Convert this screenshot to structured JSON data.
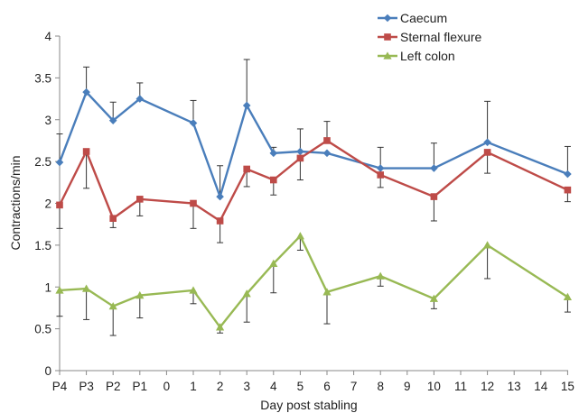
{
  "chart_data": {
    "type": "line",
    "xlabel": "Day post stabling",
    "ylabel": "Contractions/min",
    "ylim": [
      0,
      4
    ],
    "yticks": [
      "0",
      "0.5",
      "1",
      "1.5",
      "2",
      "2.5",
      "3",
      "3.5",
      "4"
    ],
    "categories": [
      "P4",
      "P3",
      "P2",
      "P1",
      "0",
      "1",
      "2",
      "3",
      "4",
      "5",
      "6",
      "7",
      "8",
      "9",
      "10",
      "11",
      "12",
      "13",
      "14",
      "15"
    ],
    "grid": false,
    "legend_position": "top-right",
    "series": [
      {
        "name": "Caecum",
        "color": "#4a7ebb",
        "marker": "diamond",
        "values": [
          2.49,
          3.33,
          2.99,
          3.25,
          null,
          2.96,
          2.08,
          3.17,
          2.6,
          2.62,
          2.6,
          null,
          2.42,
          null,
          2.42,
          null,
          2.73,
          null,
          null,
          2.35
        ],
        "error_upper": [
          0.34,
          0.3,
          0.22,
          0.19,
          null,
          0.27,
          0.37,
          0.55,
          0.07,
          0.27,
          null,
          null,
          null,
          null,
          0.3,
          null,
          0.49,
          null,
          null,
          0.33
        ],
        "error_lower": [
          null,
          null,
          null,
          null,
          null,
          null,
          null,
          null,
          null,
          null,
          null,
          null,
          null,
          null,
          null,
          null,
          null,
          null,
          null,
          null
        ]
      },
      {
        "name": "Sternal flexure",
        "color": "#be4b48",
        "marker": "square",
        "values": [
          1.98,
          2.62,
          1.82,
          2.05,
          null,
          2.0,
          1.79,
          2.41,
          2.28,
          2.54,
          2.75,
          null,
          2.34,
          null,
          2.08,
          null,
          2.61,
          null,
          null,
          2.16
        ],
        "error_upper": [
          null,
          null,
          null,
          null,
          null,
          null,
          null,
          null,
          null,
          null,
          0.23,
          null,
          0.33,
          null,
          null,
          null,
          null,
          null,
          null,
          null
        ],
        "error_lower": [
          0.28,
          0.44,
          0.11,
          0.2,
          null,
          0.3,
          0.26,
          0.21,
          0.18,
          0.26,
          null,
          null,
          0.15,
          null,
          0.29,
          null,
          0.25,
          null,
          null,
          0.14
        ]
      },
      {
        "name": "Left colon",
        "color": "#98b954",
        "marker": "triangle",
        "values": [
          0.96,
          0.98,
          0.77,
          0.9,
          null,
          0.96,
          0.52,
          0.92,
          1.28,
          1.61,
          0.94,
          null,
          1.13,
          null,
          0.86,
          null,
          1.5,
          null,
          null,
          0.88
        ],
        "error_upper": [
          null,
          null,
          null,
          null,
          null,
          null,
          null,
          null,
          null,
          null,
          null,
          null,
          null,
          null,
          null,
          null,
          null,
          null,
          null,
          null
        ],
        "error_lower": [
          0.31,
          0.37,
          0.35,
          0.27,
          null,
          0.16,
          0.07,
          0.34,
          0.35,
          0.17,
          0.38,
          null,
          0.12,
          null,
          0.12,
          null,
          0.4,
          null,
          null,
          0.18
        ]
      }
    ]
  }
}
